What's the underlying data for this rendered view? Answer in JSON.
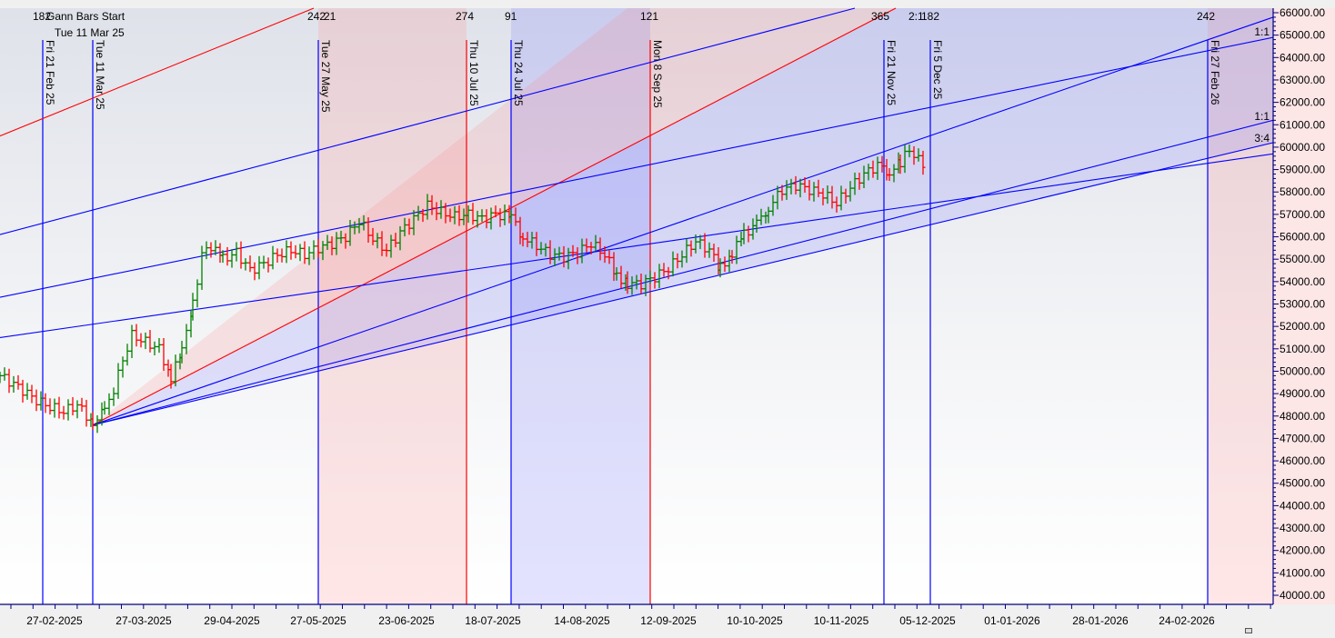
{
  "chart_data": {
    "type": "ohlc-bar",
    "title": "Gann Bars Start",
    "subtitle": "Tue 11 Mar 25",
    "xlabel": "",
    "ylabel": "",
    "ylim": [
      40000,
      66000
    ],
    "grid": false,
    "y_ticks": [
      "66000.00",
      "65000.00",
      "64000.00",
      "63000.00",
      "62000.00",
      "61000.00",
      "60000.00",
      "59000.00",
      "58000.00",
      "57000.00",
      "56000.00",
      "55000.00",
      "54000.00",
      "53000.00",
      "52000.00",
      "51000.00",
      "50000.00",
      "49000.00",
      "48000.00",
      "47000.00",
      "46000.00",
      "45000.00",
      "44000.00",
      "43000.00",
      "42000.00",
      "41000.00",
      "40000.00"
    ],
    "x_ticks": [
      {
        "label": "27-02-2025",
        "x": 60
      },
      {
        "label": "27-03-2025",
        "x": 158
      },
      {
        "label": "29-04-2025",
        "x": 255
      },
      {
        "label": "27-05-2025",
        "x": 350
      },
      {
        "label": "23-06-2025",
        "x": 447
      },
      {
        "label": "18-07-2025",
        "x": 542
      },
      {
        "label": "14-08-2025",
        "x": 640
      },
      {
        "label": "12-09-2025",
        "x": 735
      },
      {
        "label": "10-10-2025",
        "x": 830
      },
      {
        "label": "10-11-2025",
        "x": 925
      },
      {
        "label": "05-12-2025",
        "x": 1020
      },
      {
        "label": "01-01-2026",
        "x": 1113
      },
      {
        "label": "28-01-2026",
        "x": 1210
      },
      {
        "label": "24-02-2026",
        "x": 1305
      }
    ],
    "vertical_markers": [
      {
        "label": "Fri 21 Feb 25",
        "x": 47,
        "color": "#0000ff",
        "count": "182"
      },
      {
        "label": "Tue 11 Mar 25",
        "x": 102,
        "color": "#0000ff",
        "count": ""
      },
      {
        "label": "Tue 27 May 25",
        "x": 350,
        "color": "#0000ff",
        "count": "242"
      },
      {
        "label": "Thu 10 Jul 25",
        "x": 513,
        "color": "#ff0000",
        "count": "274"
      },
      {
        "label": "Thu 24 Jul 25",
        "x": 562,
        "color": "#0000ff",
        "count": "91"
      },
      {
        "label": "Mon 8 Sep 25",
        "x": 715,
        "color": "#ff0000",
        "count": "121"
      },
      {
        "label": "Fri 21 Nov 25",
        "x": 972,
        "color": "#0000ff",
        "count": "365"
      },
      {
        "label": "Fri 5 Dec 25",
        "x": 1023,
        "color": "#0000ff",
        "count": "182"
      },
      {
        "label": "Fri 27 Feb 26",
        "x": 1328,
        "color": "#0000ff",
        "count": "242"
      }
    ],
    "top_counts": [
      {
        "text": "182",
        "x": 36
      },
      {
        "text": "242",
        "x": 338
      },
      {
        "text": "21",
        "x": 356
      },
      {
        "text": "274",
        "x": 501
      },
      {
        "text": "91",
        "x": 555
      },
      {
        "text": "121",
        "x": 704
      },
      {
        "text": "365",
        "x": 958
      },
      {
        "text": "2:1",
        "x": 999
      },
      {
        "text": "182",
        "x": 1013
      },
      {
        "text": "242",
        "x": 1316
      }
    ],
    "fan_labels": [
      {
        "text": "1:1",
        "y": 33
      },
      {
        "text": "1:1",
        "y": 126
      },
      {
        "text": "3:4",
        "y": 150
      }
    ],
    "shaded_bands": [
      {
        "x1": 350,
        "x2": 513,
        "color": "#ff9090"
      },
      {
        "x1": 562,
        "x2": 715,
        "color": "#8080ff"
      },
      {
        "x1": 1328,
        "x2": 1400,
        "color": "#ff9090"
      }
    ],
    "gann_origin": {
      "date": "Tue 11 Mar 25",
      "price": 47600
    },
    "fan_lines": [
      {
        "name": "1:1 red",
        "color": "#ff0000",
        "end_price": 66000,
        "end_x": 985
      },
      {
        "name": "red upper",
        "color": "#ff0000",
        "start_price": 60500,
        "end_price": 66000,
        "start_x": 0,
        "end_x": 345
      },
      {
        "name": "1:1 blue upper",
        "color": "#0000ff",
        "end_price": 65800
      },
      {
        "name": "2:1 blue",
        "color": "#0000ff",
        "end_price": 61200
      },
      {
        "name": "3:4 blue",
        "color": "#0000ff",
        "end_price": 60200
      }
    ],
    "price_series_summary": {
      "start_price": 49900,
      "low": 47600,
      "low_date": "Tue 11 Mar 25",
      "high": 60100,
      "high_date": "late Nov 25",
      "last_price": 59200
    },
    "colors": {
      "up": "#008000",
      "down": "#ff0000",
      "fan_blue": "#0000ff",
      "fan_red": "#ff0000"
    }
  }
}
